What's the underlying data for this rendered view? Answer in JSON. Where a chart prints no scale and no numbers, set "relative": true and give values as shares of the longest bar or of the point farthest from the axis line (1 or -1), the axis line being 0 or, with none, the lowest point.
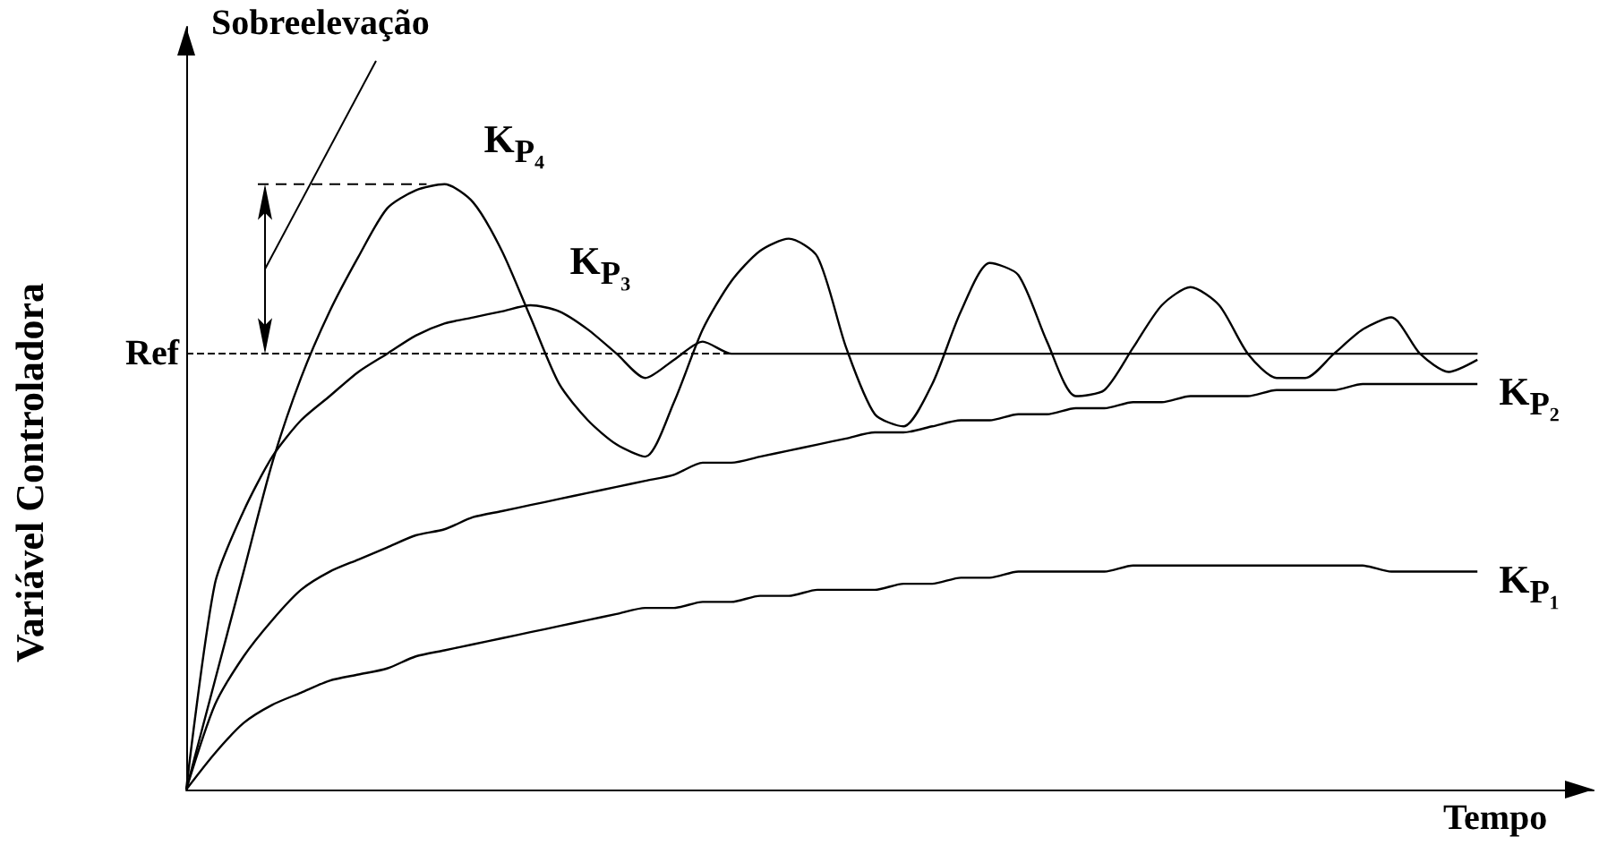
{
  "chart_data": {
    "type": "line",
    "relative": true,
    "xlabel": "Tempo",
    "ylabel": "Variável Controladora",
    "annotations": [
      "Sobreelevação"
    ],
    "categories": [
      null,
      null,
      null,
      null,
      null,
      null,
      null,
      null,
      null,
      null,
      null,
      null,
      null,
      null,
      null,
      null,
      null,
      null,
      null,
      null,
      null,
      null,
      null,
      null,
      null,
      null,
      null,
      null,
      null,
      null,
      null,
      null,
      null,
      null,
      null,
      null,
      null,
      null,
      null,
      null,
      null,
      null,
      null,
      null,
      null,
      null
    ],
    "series": [
      {
        "name": "K$_{P₁}$",
        "color": "#000000",
        "values": [
          0,
          0.06,
          0.11,
          0.14,
          0.16,
          0.18,
          0.19,
          0.2,
          0.22,
          0.23,
          0.24,
          0.25,
          0.26,
          0.27,
          0.28,
          0.29,
          0.3,
          0.3,
          0.31,
          0.31,
          0.32,
          0.32,
          0.33,
          0.33,
          0.33,
          0.34,
          0.34,
          0.35,
          0.35,
          0.36,
          0.36,
          0.36,
          0.36,
          0.37,
          0.37,
          0.37,
          0.37,
          0.37,
          0.37,
          0.37,
          0.37,
          0.37,
          0.36,
          0.36,
          0.36,
          0.36
        ]
      },
      {
        "name": "K$_{P₂}$",
        "color": "#000000",
        "values": [
          0,
          0.14,
          0.22,
          0.28,
          0.33,
          0.36,
          0.38,
          0.4,
          0.42,
          0.43,
          0.45,
          0.46,
          0.47,
          0.48,
          0.49,
          0.5,
          0.51,
          0.52,
          0.54,
          0.54,
          0.55,
          0.56,
          0.57,
          0.58,
          0.59,
          0.59,
          0.6,
          0.61,
          0.61,
          0.62,
          0.62,
          0.63,
          0.63,
          0.64,
          0.64,
          0.65,
          0.65,
          0.65,
          0.66,
          0.66,
          0.66,
          0.67,
          0.67,
          0.67,
          0.67,
          0.67
        ]
      },
      {
        "name": "K$_{P₃}$",
        "color": "#000000",
        "values": [
          0,
          0.34,
          0.46,
          0.55,
          0.61,
          0.65,
          0.69,
          0.72,
          0.75,
          0.77,
          0.78,
          0.79,
          0.8,
          0.79,
          0.76,
          0.72,
          0.68,
          0.71,
          0.74,
          0.72,
          0.72,
          0.72,
          0.72,
          0.72,
          0.72,
          0.72,
          0.72,
          0.72,
          0.72,
          0.72,
          0.72,
          0.72,
          0.72,
          0.72,
          0.72,
          0.72,
          0.72,
          0.72,
          0.72,
          0.72,
          0.72,
          0.72,
          0.72,
          0.72,
          0.72,
          0.72
        ]
      },
      {
        "name": "K$_{P₄}$",
        "color": "#000000",
        "values": [
          0,
          0.18,
          0.36,
          0.54,
          0.68,
          0.79,
          0.88,
          0.96,
          0.99,
          1,
          0.97,
          0.89,
          0.78,
          0.67,
          0.61,
          0.57,
          0.55,
          0.64,
          0.76,
          0.84,
          0.89,
          0.91,
          0.88,
          0.73,
          0.62,
          0.6,
          0.67,
          0.79,
          0.87,
          0.85,
          0.74,
          0.65,
          0.66,
          0.73,
          0.8,
          0.83,
          0.8,
          0.72,
          0.68,
          0.68,
          0.72,
          0.76,
          0.78,
          0.72,
          0.69,
          0.71
        ]
      }
    ],
    "ref_lines": [
      {
        "axis": "y",
        "value": 0.72,
        "label": "Ref",
        "color": "#000000",
        "line_style": "dashed"
      }
    ],
    "marker": "none",
    "line_style": "solid",
    "grid": false,
    "legend": false,
    "tick_labels": false
  }
}
